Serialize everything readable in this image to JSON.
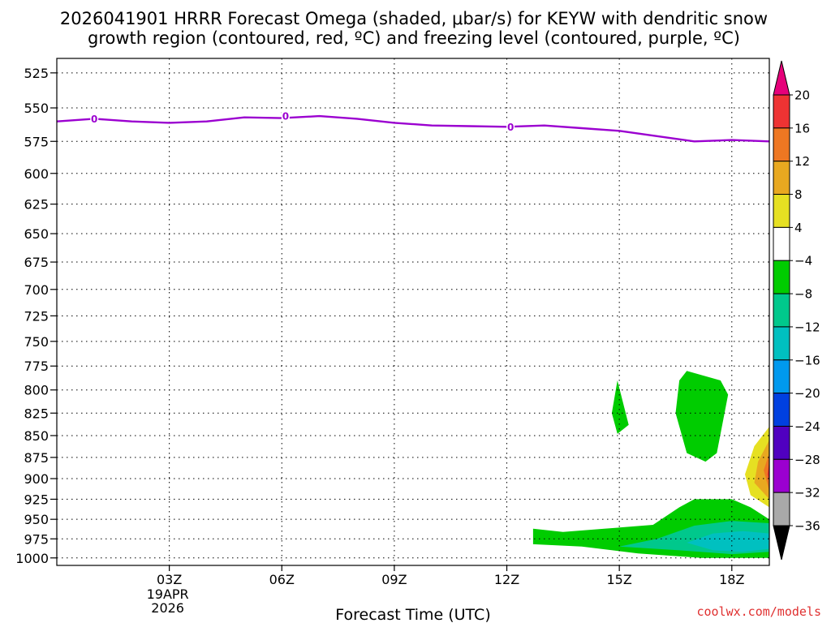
{
  "chart_data": {
    "type": "heatmap",
    "title_lines": [
      "2026041901 HRRR Forecast Omega (shaded, μbar/s) for KEYW with dendritic snow",
      "growth region (contoured, red, ºC) and freezing level (contoured, purple, ºC)"
    ],
    "xlabel": "Forecast Time (UTC)",
    "ylabel": "",
    "x_range_hours": [
      0,
      19
    ],
    "y_range_hPa": [
      515,
      1010
    ],
    "y_ticks": [
      "525",
      "550",
      "575",
      "600",
      "625",
      "650",
      "675",
      "700",
      "725",
      "750",
      "775",
      "800",
      "825",
      "850",
      "875",
      "900",
      "925",
      "950",
      "975",
      "1000"
    ],
    "x_ticks": [
      {
        "label": "03Z",
        "hour": 3,
        "sub": [
          "19APR",
          "2026"
        ]
      },
      {
        "label": "06Z",
        "hour": 6,
        "sub": []
      },
      {
        "label": "09Z",
        "hour": 9,
        "sub": []
      },
      {
        "label": "12Z",
        "hour": 12,
        "sub": []
      },
      {
        "label": "15Z",
        "hour": 15,
        "sub": []
      },
      {
        "label": "18Z",
        "hour": 18,
        "sub": []
      }
    ],
    "grid": true,
    "freezing_level": {
      "color": "#9b00d0",
      "contour_label": "0",
      "points": [
        [
          0,
          560
        ],
        [
          1,
          558
        ],
        [
          2,
          560
        ],
        [
          3,
          561
        ],
        [
          4,
          560
        ],
        [
          5,
          557
        ],
        [
          6,
          557.5
        ],
        [
          7,
          556
        ],
        [
          8,
          558
        ],
        [
          9,
          561
        ],
        [
          10,
          563
        ],
        [
          11,
          563.5
        ],
        [
          12,
          564
        ],
        [
          13,
          563
        ],
        [
          14,
          565
        ],
        [
          15,
          567
        ],
        [
          16,
          571
        ],
        [
          17,
          575
        ],
        [
          18,
          574
        ],
        [
          19,
          575
        ]
      ],
      "label_points": [
        [
          1,
          558
        ],
        [
          6.1,
          556
        ],
        [
          12.1,
          564
        ]
      ]
    },
    "omega_regions": [
      {
        "value": -6,
        "color": "#00cc00",
        "points": [
          [
            16.8,
            780
          ],
          [
            17.7,
            790
          ],
          [
            17.9,
            805
          ],
          [
            17.6,
            870
          ],
          [
            17.3,
            880
          ],
          [
            16.8,
            870
          ],
          [
            16.5,
            825
          ],
          [
            16.6,
            790
          ]
        ]
      },
      {
        "value": -6,
        "color": "#00cc00",
        "points": [
          [
            14.95,
            790
          ],
          [
            15.25,
            838
          ],
          [
            14.95,
            848
          ],
          [
            14.8,
            825
          ]
        ]
      },
      {
        "value": -6,
        "color": "#00cc00",
        "points": [
          [
            12.7,
            962
          ],
          [
            13.5,
            966
          ],
          [
            14.6,
            962
          ],
          [
            15.9,
            957
          ],
          [
            16.6,
            935
          ],
          [
            17.0,
            925
          ],
          [
            18.0,
            925
          ],
          [
            18.5,
            935
          ],
          [
            19,
            950
          ],
          [
            19,
            1000
          ],
          [
            17.2,
            1000
          ],
          [
            15.5,
            994
          ],
          [
            14.0,
            985
          ],
          [
            12.7,
            982
          ]
        ]
      },
      {
        "value": -10,
        "color": "#00c88c",
        "points": [
          [
            15.0,
            985
          ],
          [
            16.0,
            975
          ],
          [
            17.0,
            958
          ],
          [
            18.0,
            952
          ],
          [
            19,
            955
          ],
          [
            19,
            992
          ],
          [
            18.0,
            995
          ],
          [
            16.6,
            990
          ]
        ]
      },
      {
        "value": -14,
        "color": "#00c0c0",
        "points": [
          [
            16.8,
            980
          ],
          [
            17.5,
            968
          ],
          [
            18.3,
            965
          ],
          [
            19,
            968
          ],
          [
            19,
            988
          ],
          [
            18.3,
            992
          ],
          [
            17.5,
            990
          ]
        ]
      },
      {
        "value": 6,
        "color": "#e6e022",
        "points": [
          [
            19,
            840
          ],
          [
            18.6,
            862
          ],
          [
            18.35,
            895
          ],
          [
            18.5,
            920
          ],
          [
            19,
            935
          ]
        ]
      },
      {
        "value": 10,
        "color": "#e8a820",
        "points": [
          [
            19,
            855
          ],
          [
            18.7,
            880
          ],
          [
            18.6,
            905
          ],
          [
            19,
            925
          ]
        ]
      },
      {
        "value": 14,
        "color": "#ee7722",
        "points": [
          [
            19,
            870
          ],
          [
            18.85,
            890
          ],
          [
            19,
            915
          ]
        ]
      },
      {
        "value": 18,
        "color": "#ee3333",
        "points": [
          [
            19,
            880
          ],
          [
            18.95,
            895
          ],
          [
            19,
            905
          ]
        ]
      }
    ],
    "terrain": {
      "color": "#a0522d",
      "pressure_hPa": 1010
    },
    "colorbar": {
      "colors": [
        "#e6007a",
        "#ee3333",
        "#ee7722",
        "#e8a820",
        "#e6e022",
        "#ffffff",
        "#00cc00",
        "#00c88c",
        "#00c0c0",
        "#0099ee",
        "#0040e0",
        "#5000c0",
        "#9b00d0",
        "#a9a9a9",
        "#000000"
      ],
      "labels": [
        "20",
        "16",
        "12",
        "8",
        "4",
        "−4",
        "−8",
        "−12",
        "−16",
        "−20",
        "−24",
        "−28",
        "−32",
        "−36"
      ]
    }
  },
  "credit": "coolwx.com/models"
}
